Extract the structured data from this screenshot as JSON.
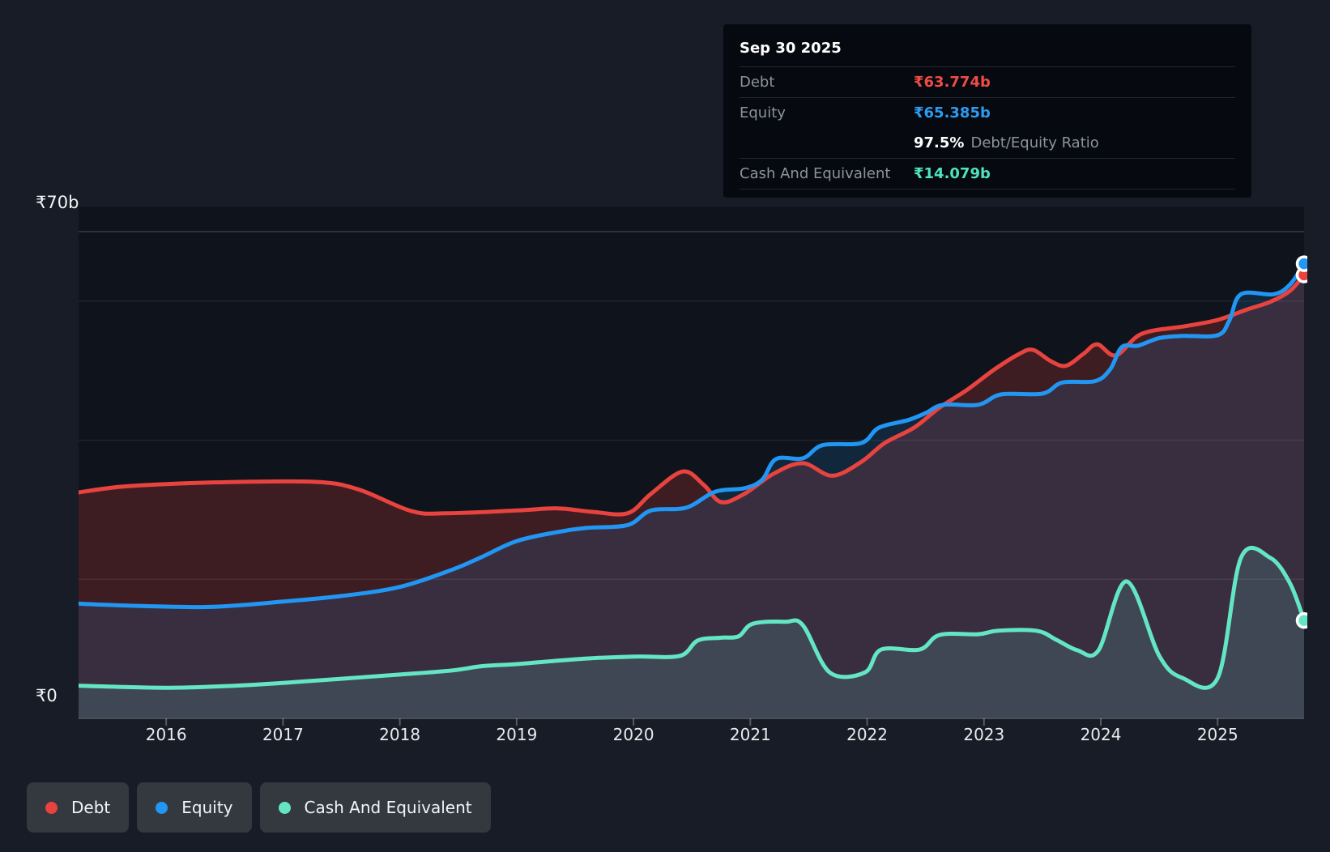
{
  "page": {
    "background": "#171c26",
    "plot_background": "#0f141c"
  },
  "y_axis": {
    "top_label": "₹70b",
    "zero_label": "₹0"
  },
  "x_axis": {
    "years": [
      "2016",
      "2017",
      "2018",
      "2019",
      "2020",
      "2021",
      "2022",
      "2023",
      "2024",
      "2025"
    ]
  },
  "tooltip": {
    "date": "Sep 30 2025",
    "debt_label": "Debt",
    "debt_value": "₹63.774b",
    "equity_label": "Equity",
    "equity_value": "₹65.385b",
    "ratio_value": "97.5%",
    "ratio_label": "Debt/Equity Ratio",
    "cash_label": "Cash And Equivalent",
    "cash_value": "₹14.079b"
  },
  "legend": {
    "items": [
      {
        "label": "Debt",
        "color": "#e8433e"
      },
      {
        "label": "Equity",
        "color": "#2196f3"
      },
      {
        "label": "Cash And Equivalent",
        "color": "#64e6c4"
      }
    ]
  },
  "chart_data": {
    "type": "area",
    "title": "Debt, Equity and Cash history (₹ billions)",
    "x_domain": [
      2015.25,
      2025.74
    ],
    "y_domain": [
      0,
      72.1
    ],
    "y_gridlines": [
      70,
      60,
      40,
      20
    ],
    "grid": true,
    "legend_position": "bottom-left",
    "series": [
      {
        "name": "Debt",
        "color": "#e8433e",
        "fill": "rgba(232,66,58,0.22)",
        "points": [
          [
            2015.25,
            32.5
          ],
          [
            2015.6,
            33.3
          ],
          [
            2016.0,
            33.7
          ],
          [
            2016.6,
            34.0
          ],
          [
            2017.3,
            34.0
          ],
          [
            2017.65,
            32.9
          ],
          [
            2018.1,
            29.8
          ],
          [
            2018.4,
            29.5
          ],
          [
            2019.0,
            29.9
          ],
          [
            2019.35,
            30.2
          ],
          [
            2019.65,
            29.7
          ],
          [
            2019.95,
            29.5
          ],
          [
            2020.15,
            32.3
          ],
          [
            2020.42,
            35.5
          ],
          [
            2020.6,
            33.6
          ],
          [
            2020.75,
            31.1
          ],
          [
            2020.95,
            32.3
          ],
          [
            2021.2,
            35.2
          ],
          [
            2021.45,
            36.7
          ],
          [
            2021.7,
            34.9
          ],
          [
            2021.95,
            36.9
          ],
          [
            2022.15,
            39.6
          ],
          [
            2022.4,
            41.8
          ],
          [
            2022.62,
            44.7
          ],
          [
            2022.85,
            47.2
          ],
          [
            2023.1,
            50.3
          ],
          [
            2023.3,
            52.4
          ],
          [
            2023.42,
            53.0
          ],
          [
            2023.57,
            51.4
          ],
          [
            2023.7,
            50.7
          ],
          [
            2023.85,
            52.4
          ],
          [
            2023.97,
            53.8
          ],
          [
            2024.13,
            52.2
          ],
          [
            2024.35,
            55.3
          ],
          [
            2024.72,
            56.4
          ],
          [
            2025.0,
            57.3
          ],
          [
            2025.25,
            58.8
          ],
          [
            2025.45,
            59.9
          ],
          [
            2025.62,
            61.5
          ],
          [
            2025.74,
            63.774
          ]
        ]
      },
      {
        "name": "Equity",
        "color": "#2196f3",
        "fill": "rgba(33,150,243,0.15)",
        "points": [
          [
            2015.25,
            16.5
          ],
          [
            2015.7,
            16.2
          ],
          [
            2016.3,
            16.0
          ],
          [
            2016.65,
            16.3
          ],
          [
            2017.0,
            16.8
          ],
          [
            2017.5,
            17.6
          ],
          [
            2018.0,
            18.9
          ],
          [
            2018.45,
            21.4
          ],
          [
            2018.7,
            23.2
          ],
          [
            2019.0,
            25.5
          ],
          [
            2019.35,
            26.8
          ],
          [
            2019.6,
            27.4
          ],
          [
            2019.95,
            27.8
          ],
          [
            2020.15,
            29.9
          ],
          [
            2020.45,
            30.3
          ],
          [
            2020.7,
            32.6
          ],
          [
            2020.95,
            33.1
          ],
          [
            2021.1,
            34.3
          ],
          [
            2021.22,
            37.3
          ],
          [
            2021.45,
            37.4
          ],
          [
            2021.62,
            39.3
          ],
          [
            2021.95,
            39.6
          ],
          [
            2022.1,
            41.8
          ],
          [
            2022.35,
            42.9
          ],
          [
            2022.5,
            43.9
          ],
          [
            2022.65,
            45.1
          ],
          [
            2022.95,
            45.1
          ],
          [
            2023.15,
            46.6
          ],
          [
            2023.5,
            46.7
          ],
          [
            2023.67,
            48.3
          ],
          [
            2023.95,
            48.5
          ],
          [
            2024.08,
            50.2
          ],
          [
            2024.18,
            53.4
          ],
          [
            2024.32,
            53.6
          ],
          [
            2024.5,
            54.7
          ],
          [
            2024.7,
            55.0
          ],
          [
            2025.0,
            55.1
          ],
          [
            2025.1,
            57.2
          ],
          [
            2025.2,
            61.0
          ],
          [
            2025.48,
            61.0
          ],
          [
            2025.62,
            62.4
          ],
          [
            2025.74,
            65.385
          ]
        ]
      },
      {
        "name": "Cash And Equivalent",
        "color": "#64e6c4",
        "fill": "rgba(100,230,196,0.14)",
        "points": [
          [
            2015.25,
            4.7
          ],
          [
            2016.0,
            4.4
          ],
          [
            2016.6,
            4.7
          ],
          [
            2017.0,
            5.1
          ],
          [
            2017.5,
            5.7
          ],
          [
            2018.0,
            6.3
          ],
          [
            2018.45,
            6.9
          ],
          [
            2018.7,
            7.5
          ],
          [
            2019.0,
            7.8
          ],
          [
            2019.35,
            8.3
          ],
          [
            2019.7,
            8.7
          ],
          [
            2020.05,
            8.9
          ],
          [
            2020.4,
            9.0
          ],
          [
            2020.55,
            11.2
          ],
          [
            2020.75,
            11.6
          ],
          [
            2020.9,
            11.8
          ],
          [
            2021.02,
            13.6
          ],
          [
            2021.3,
            13.9
          ],
          [
            2021.45,
            13.4
          ],
          [
            2021.68,
            6.6
          ],
          [
            2021.98,
            6.6
          ],
          [
            2022.12,
            9.9
          ],
          [
            2022.45,
            9.9
          ],
          [
            2022.62,
            12.0
          ],
          [
            2022.95,
            12.1
          ],
          [
            2023.12,
            12.6
          ],
          [
            2023.45,
            12.6
          ],
          [
            2023.62,
            11.3
          ],
          [
            2023.8,
            9.8
          ],
          [
            2023.98,
            9.8
          ],
          [
            2024.22,
            19.7
          ],
          [
            2024.5,
            9.0
          ],
          [
            2024.7,
            5.8
          ],
          [
            2025.0,
            5.8
          ],
          [
            2025.2,
            23.1
          ],
          [
            2025.45,
            23.1
          ],
          [
            2025.62,
            19.4
          ],
          [
            2025.74,
            14.079
          ]
        ]
      }
    ],
    "end_markers": [
      {
        "series": "Debt",
        "x": 2025.74,
        "y": 63.774
      },
      {
        "series": "Equity",
        "x": 2025.74,
        "y": 65.385
      },
      {
        "series": "Cash And Equivalent",
        "x": 2025.74,
        "y": 14.079
      }
    ]
  }
}
